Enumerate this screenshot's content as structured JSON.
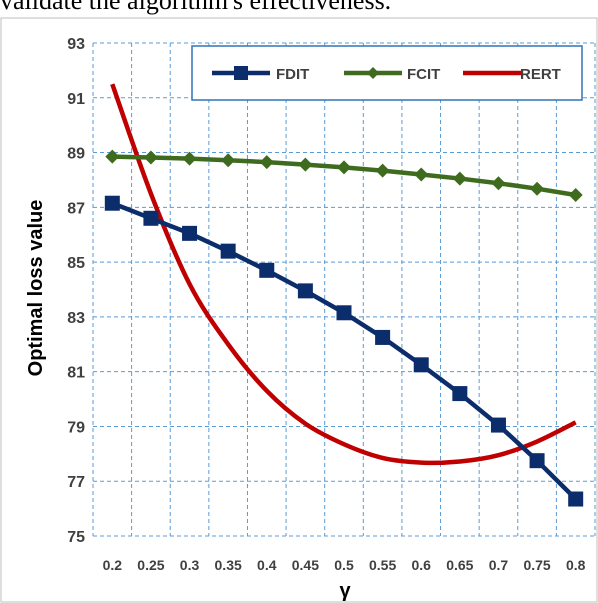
{
  "header_text": "validate the algorithm's effectiveness.",
  "chart_data": {
    "type": "line",
    "title": "",
    "xlabel": "γ",
    "ylabel": "Optimal loss value",
    "x": [
      0.2,
      0.25,
      0.3,
      0.35,
      0.4,
      0.45,
      0.5,
      0.55,
      0.6,
      0.65,
      0.7,
      0.75,
      0.8
    ],
    "x_tick_labels": [
      "0.2",
      "0.25",
      "0.3",
      "0.35",
      "0.4",
      "0.45",
      "0.5",
      "0.55",
      "0.6",
      "0.65",
      "0.7",
      "0.75",
      "0.8"
    ],
    "ylim": [
      75,
      93
    ],
    "y_ticks": [
      75,
      77,
      79,
      81,
      83,
      85,
      87,
      89,
      91,
      93
    ],
    "grid": true,
    "legend_position": "top-right",
    "series": [
      {
        "name": "FDIT",
        "color": "#0c2d6b",
        "marker": "square",
        "values": [
          87.15,
          86.6,
          86.05,
          85.4,
          84.7,
          83.95,
          83.15,
          82.25,
          81.25,
          80.2,
          79.05,
          77.75,
          76.35
        ]
      },
      {
        "name": "FCIT",
        "color": "#3f6b1f",
        "marker": "diamond",
        "values": [
          88.85,
          88.82,
          88.78,
          88.72,
          88.65,
          88.56,
          88.46,
          88.34,
          88.2,
          88.05,
          87.88,
          87.68,
          87.45
        ]
      },
      {
        "name": "RERT",
        "color": "#c00000",
        "marker": "none",
        "values": [
          91.5,
          87.5,
          84.2,
          82.0,
          80.3,
          79.1,
          78.35,
          77.85,
          77.68,
          77.72,
          77.95,
          78.45,
          79.15
        ]
      }
    ]
  }
}
